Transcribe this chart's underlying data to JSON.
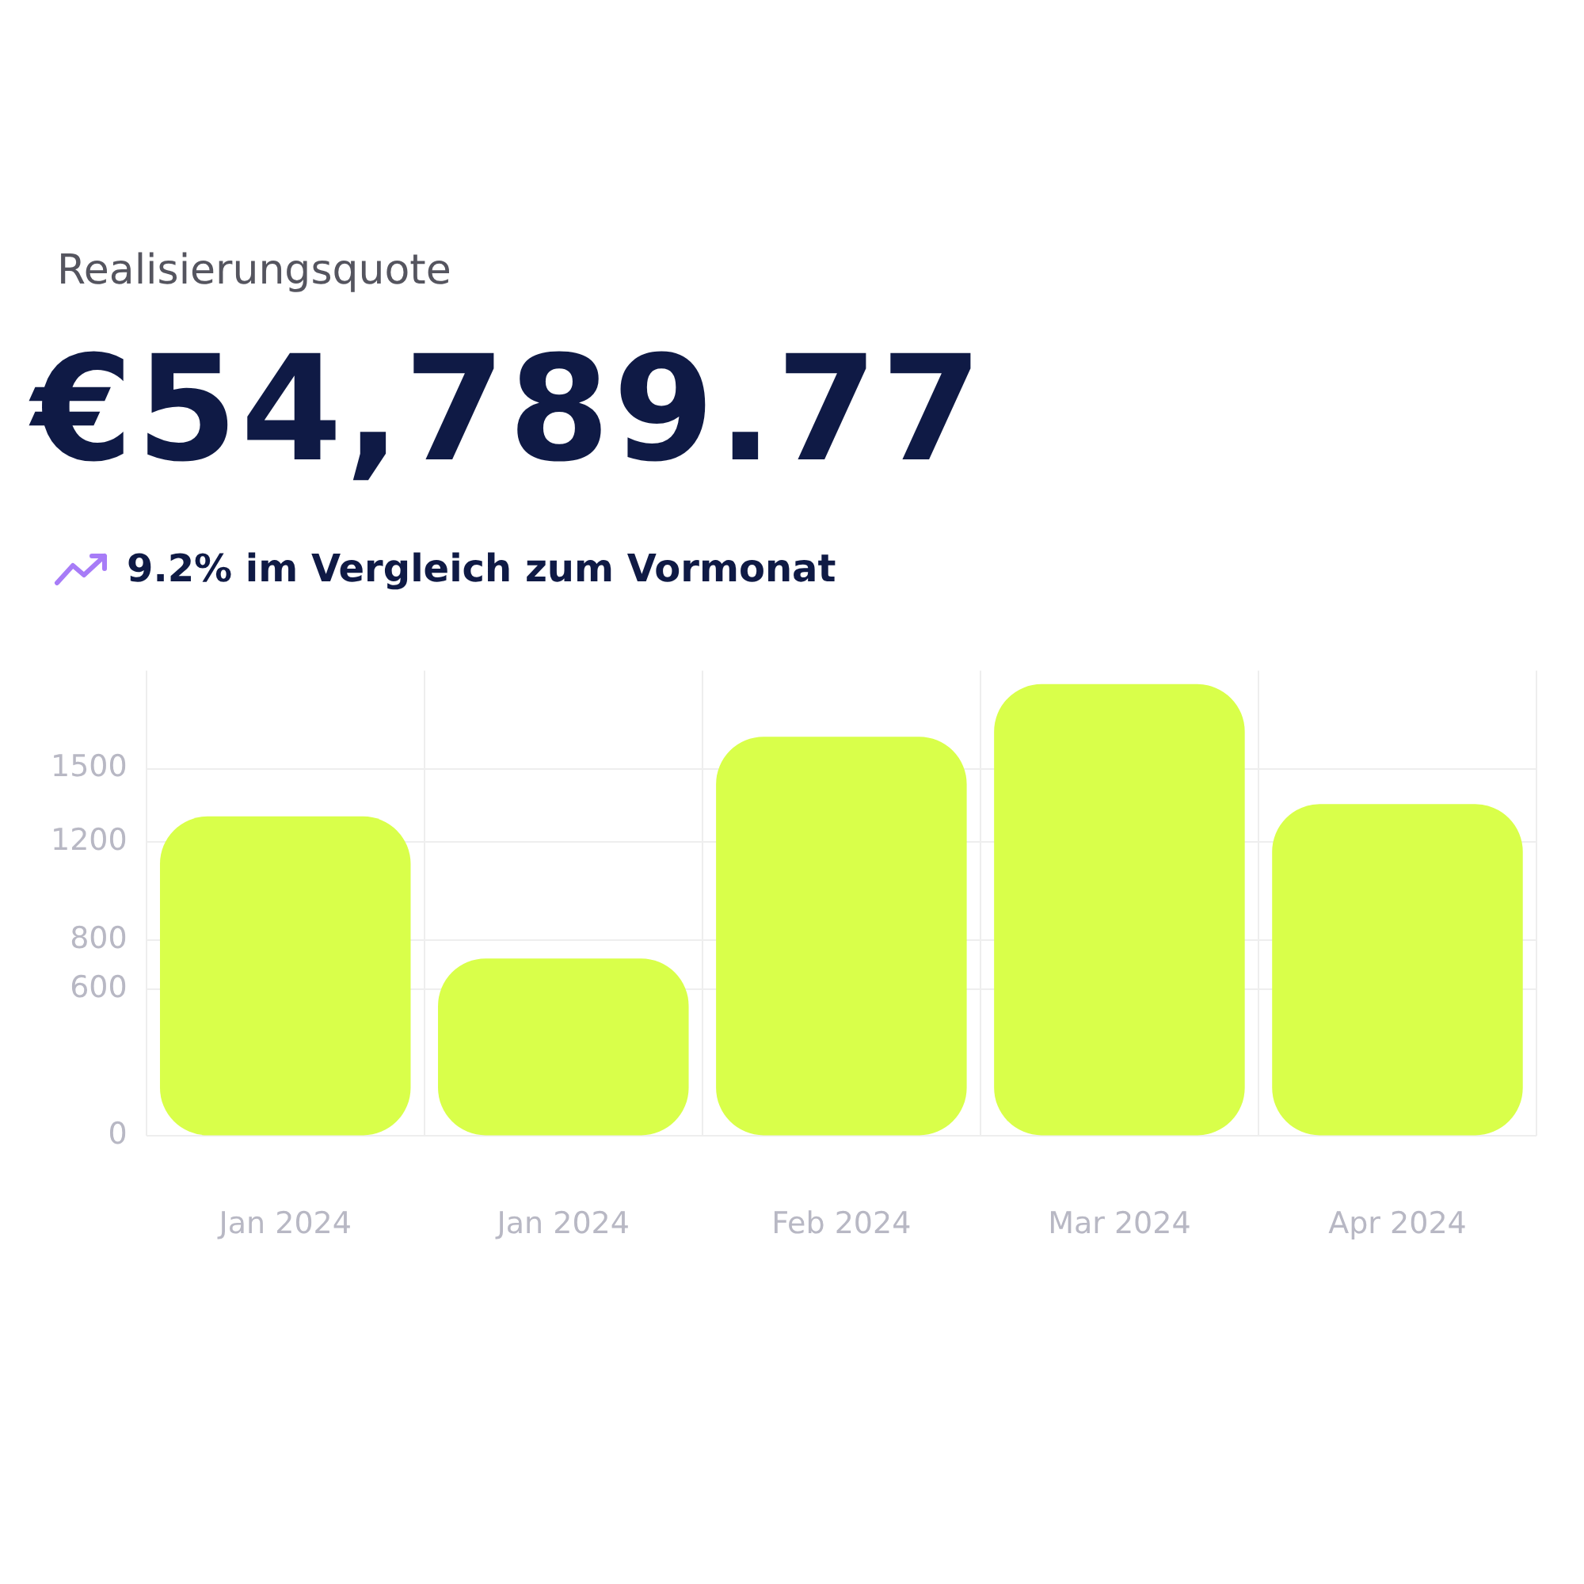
{
  "chart_data": {
    "type": "bar",
    "title": "Realisierungsquote",
    "subtitle": "€54,789.77",
    "annotations": [
      "9.2% im Vergleich zum Vormonat"
    ],
    "categories": [
      "Jan 2024",
      "Jan 2024",
      "Feb 2024",
      "Mar 2024",
      "Apr 2024"
    ],
    "values": [
      1305,
      725,
      1630,
      1845,
      1355
    ],
    "color": "#d9ff4a",
    "ylim": [
      0,
      1900
    ],
    "yticks": [
      0,
      600,
      800,
      1200,
      1500
    ],
    "grid": true,
    "legend": false
  }
}
